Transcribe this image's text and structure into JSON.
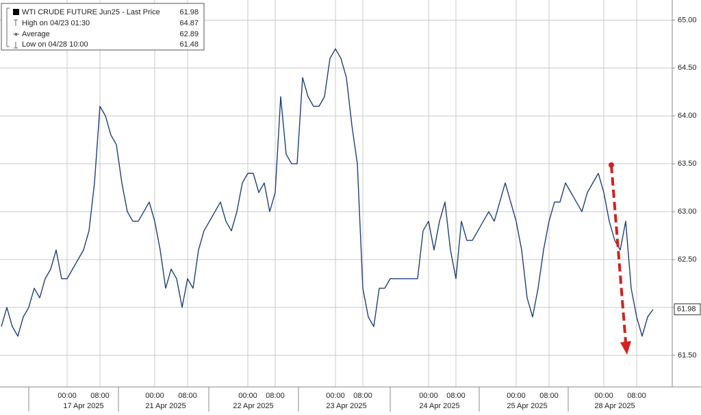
{
  "chart_data": {
    "type": "line",
    "legend": {
      "entries": [
        {
          "label": "WTI CRUDE FUTURE Jun25 - Last Price",
          "value": 61.98
        },
        {
          "label": "High on 04/23 01:30",
          "value": 64.87
        },
        {
          "label": "Average",
          "value": 62.89
        },
        {
          "label": "Low on 04/28 10:00",
          "value": 61.48
        }
      ]
    },
    "last_price": 61.98,
    "categories": [
      null,
      null,
      null,
      null,
      null,
      null,
      null,
      null,
      null,
      null,
      null,
      null,
      "00:00",
      null,
      null,
      null,
      null,
      null,
      "08:00",
      null,
      null,
      null,
      null,
      null,
      null,
      null,
      null,
      null,
      "00:00",
      null,
      null,
      null,
      null,
      null,
      "08:00",
      null,
      null,
      null,
      null,
      null,
      null,
      null,
      null,
      null,
      null,
      "00:00",
      null,
      null,
      null,
      null,
      "08:00",
      null,
      null,
      null,
      null,
      null,
      null,
      null,
      null,
      null,
      null,
      "00:00",
      null,
      null,
      null,
      null,
      "08:00",
      null,
      null,
      null,
      null,
      null,
      null,
      null,
      null,
      null,
      null,
      null,
      "00:00",
      null,
      null,
      null,
      null,
      "08:00",
      null,
      null,
      null,
      null,
      null,
      null,
      null,
      null,
      null,
      null,
      "00:00",
      null,
      null,
      null,
      null,
      null,
      "08:00",
      null,
      null,
      null,
      null,
      null,
      null,
      null,
      null,
      null,
      "00:00",
      null,
      null,
      null,
      null,
      null,
      "08:00",
      null,
      null,
      null
    ],
    "date_categories": [
      null,
      null,
      null,
      null,
      null,
      null,
      null,
      null,
      null,
      null,
      null,
      null,
      null,
      null,
      null,
      "17 Apr 2025",
      null,
      null,
      null,
      null,
      null,
      null,
      null,
      null,
      null,
      null,
      null,
      null,
      null,
      null,
      "21 Apr 2025",
      null,
      null,
      null,
      null,
      null,
      null,
      null,
      null,
      null,
      null,
      null,
      null,
      null,
      null,
      null,
      "22 Apr 2025",
      null,
      null,
      null,
      null,
      null,
      null,
      null,
      null,
      null,
      null,
      null,
      null,
      null,
      null,
      null,
      null,
      "23 Apr 2025",
      null,
      null,
      null,
      null,
      null,
      null,
      null,
      null,
      null,
      null,
      null,
      null,
      null,
      null,
      null,
      null,
      "24 Apr 2025",
      null,
      null,
      null,
      null,
      null,
      null,
      null,
      null,
      null,
      null,
      null,
      null,
      null,
      null,
      null,
      "25 Apr 2025",
      null,
      null,
      null,
      null,
      null,
      null,
      null,
      null,
      null,
      null,
      null,
      null,
      null,
      null,
      null,
      "28 Apr 2025",
      null,
      null,
      null,
      null,
      null,
      null,
      null
    ],
    "series": [
      {
        "name": "WTI CRUDE FUTURE Jun25 - Last Price",
        "color": "#1f3f7a",
        "values": [
          61.8,
          62.0,
          61.8,
          61.7,
          61.9,
          62.0,
          62.2,
          62.1,
          62.3,
          62.4,
          62.6,
          62.3,
          62.3,
          62.4,
          62.5,
          62.6,
          62.8,
          63.3,
          64.1,
          64.0,
          63.8,
          63.7,
          63.3,
          63.0,
          62.9,
          62.9,
          63.0,
          63.1,
          62.9,
          62.6,
          62.2,
          62.4,
          62.3,
          62.0,
          62.3,
          62.2,
          62.6,
          62.8,
          62.9,
          63.0,
          63.1,
          62.9,
          62.8,
          63.0,
          63.3,
          63.4,
          63.4,
          63.2,
          63.3,
          63.0,
          63.2,
          64.2,
          63.6,
          63.5,
          63.5,
          64.4,
          64.2,
          64.1,
          64.1,
          64.2,
          64.6,
          64.7,
          64.6,
          64.4,
          63.9,
          63.5,
          62.2,
          61.9,
          61.8,
          62.2,
          62.2,
          62.3,
          62.3,
          62.3,
          62.3,
          62.3,
          62.3,
          62.8,
          62.9,
          62.6,
          62.9,
          63.1,
          62.6,
          62.3,
          62.9,
          62.7,
          62.7,
          62.8,
          62.9,
          63.0,
          62.9,
          63.1,
          63.3,
          63.1,
          62.9,
          62.6,
          62.1,
          61.9,
          62.2,
          62.6,
          62.9,
          63.1,
          63.1,
          63.3,
          63.2,
          63.1,
          63.0,
          63.2,
          63.3,
          63.4,
          63.2,
          62.9,
          62.7,
          62.6,
          62.9,
          62.2,
          61.9,
          61.7,
          61.9,
          61.98
        ]
      }
    ],
    "ylim": [
      61.17,
      65.21
    ],
    "yticks": [
      {
        "value": 61.5,
        "label": "61.50"
      },
      {
        "value": 62,
        "label": "62.00"
      },
      {
        "value": 62.5,
        "label": "62.50"
      },
      {
        "value": 63,
        "label": "63.00"
      },
      {
        "value": 63.5,
        "label": "63.50"
      },
      {
        "value": 64,
        "label": "64.00"
      },
      {
        "value": 64.5,
        "label": "64.50"
      },
      {
        "value": 65,
        "label": "65.00"
      }
    ],
    "grid": true
  }
}
